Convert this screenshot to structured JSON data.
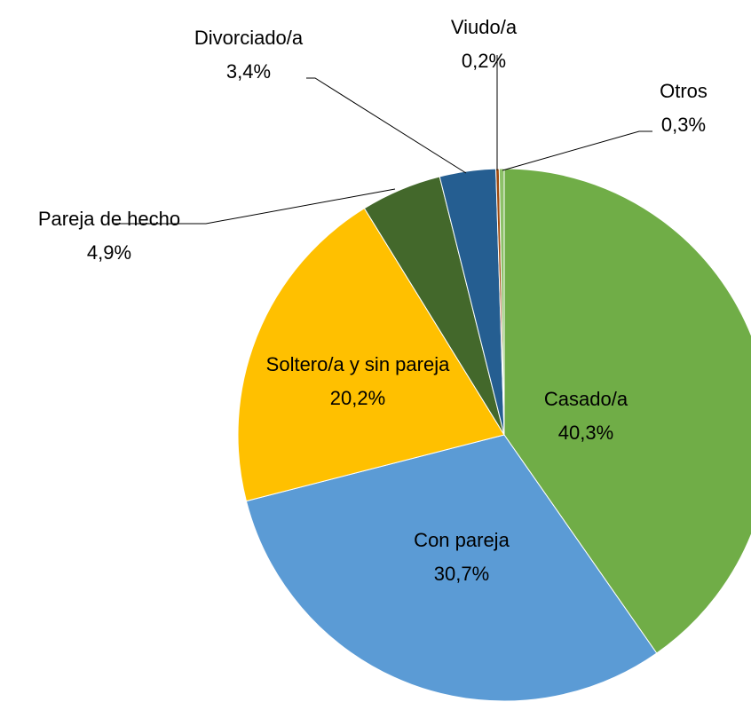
{
  "chart_data": {
    "type": "pie",
    "categories": [
      "Casado/a",
      "Con pareja",
      "Soltero/a y sin pareja",
      "Pareja de hecho",
      "Divorciado/a",
      "Viudo/a",
      "Otros"
    ],
    "values": [
      40.3,
      30.7,
      20.2,
      4.9,
      3.4,
      0.2,
      0.3
    ],
    "value_labels": [
      "40,3%",
      "30,7%",
      "20,2%",
      "4,9%",
      "3,4%",
      "0,2%",
      "0,3%"
    ],
    "colors": [
      "#70ad47",
      "#5b9bd5",
      "#ffc000",
      "#43682b",
      "#255e91",
      "#9e480e",
      "#8cc168"
    ]
  }
}
